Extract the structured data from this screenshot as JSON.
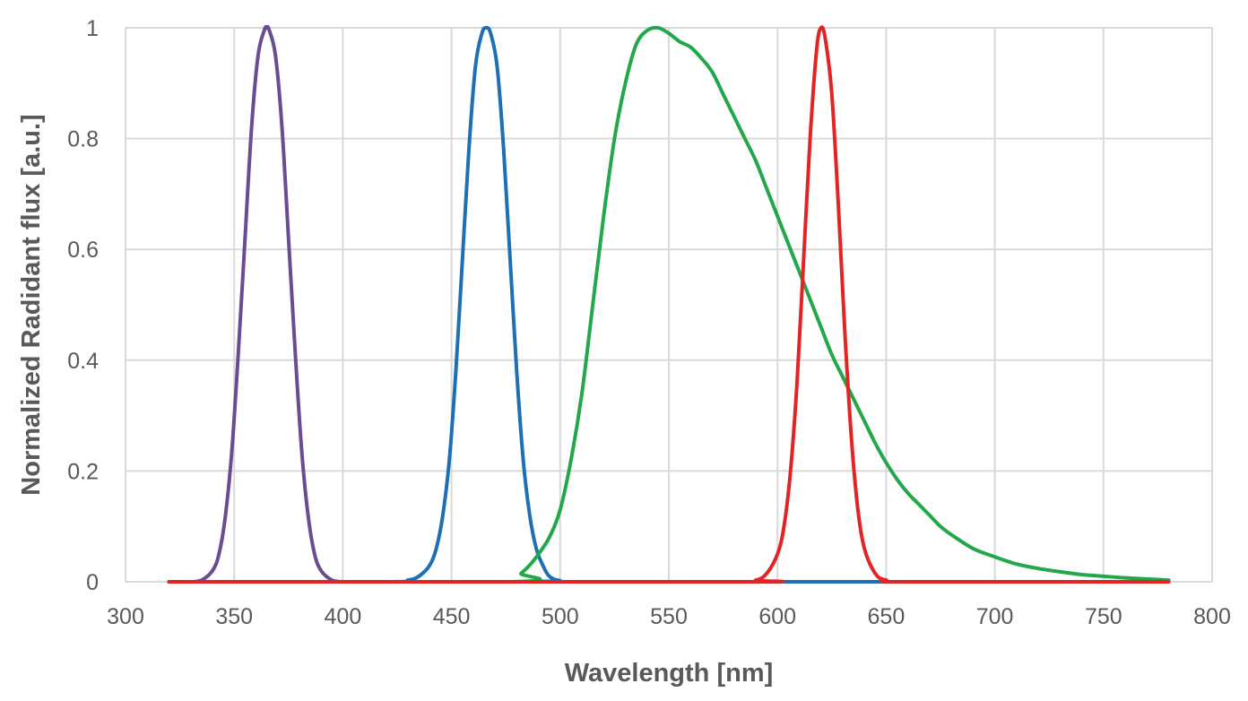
{
  "chart_data": {
    "type": "line",
    "title": "",
    "xlabel": "Wavelength  [nm]",
    "ylabel": "Normalized Radidant  flux [a.u.]",
    "xlim": [
      300,
      800
    ],
    "ylim": [
      0,
      1
    ],
    "x_ticks": [
      300,
      350,
      400,
      450,
      500,
      550,
      600,
      650,
      700,
      750,
      800
    ],
    "y_ticks": [
      0,
      0.2,
      0.4,
      0.6,
      0.8,
      1
    ],
    "y_tick_labels": [
      "0",
      "0.2",
      "0.4",
      "0.6",
      "0.8",
      "1"
    ],
    "x_tick_labels": [
      "300",
      "350",
      "400",
      "450",
      "500",
      "550",
      "600",
      "650",
      "700",
      "750",
      "800"
    ],
    "grid": true,
    "legend": "none",
    "series": [
      {
        "color": "#6a4c93",
        "x": [
          320,
          330,
          335,
          340,
          343,
          346,
          349,
          352,
          355,
          358,
          361,
          364,
          365,
          366,
          369,
          372,
          375,
          378,
          381,
          384,
          387,
          390,
          395,
          400,
          410,
          500,
          650
        ],
        "y": [
          0,
          0,
          0.003,
          0.02,
          0.05,
          0.12,
          0.24,
          0.42,
          0.62,
          0.82,
          0.95,
          0.997,
          1.0,
          0.997,
          0.95,
          0.82,
          0.62,
          0.42,
          0.24,
          0.12,
          0.05,
          0.02,
          0.003,
          0,
          0,
          0,
          0
        ]
      },
      {
        "color": "#1f6fb5",
        "x": [
          320,
          420,
          430,
          435,
          440,
          443,
          446,
          449,
          452,
          455,
          458,
          461,
          464,
          466,
          468,
          471,
          474,
          477,
          480,
          483,
          486,
          489,
          492,
          495,
          500,
          510,
          780
        ],
        "y": [
          0,
          0,
          0.003,
          0.01,
          0.03,
          0.06,
          0.12,
          0.22,
          0.38,
          0.58,
          0.78,
          0.93,
          0.99,
          1.0,
          0.99,
          0.93,
          0.78,
          0.58,
          0.38,
          0.22,
          0.12,
          0.06,
          0.03,
          0.01,
          0.002,
          0,
          0
        ]
      },
      {
        "color": "#22a84a",
        "x": [
          320,
          478,
          482,
          486,
          490,
          495,
          500,
          505,
          510,
          515,
          520,
          525,
          530,
          535,
          540,
          545,
          550,
          555,
          560,
          565,
          570,
          575,
          580,
          585,
          590,
          595,
          600,
          605,
          610,
          615,
          620,
          625,
          630,
          635,
          640,
          645,
          650,
          655,
          660,
          665,
          670,
          675,
          680,
          690,
          700,
          710,
          720,
          730,
          740,
          750,
          760,
          770,
          780
        ],
        "y": [
          0,
          0,
          0.015,
          0.03,
          0.05,
          0.08,
          0.13,
          0.22,
          0.34,
          0.5,
          0.66,
          0.8,
          0.9,
          0.97,
          0.995,
          1.0,
          0.99,
          0.975,
          0.965,
          0.945,
          0.92,
          0.88,
          0.84,
          0.8,
          0.76,
          0.71,
          0.66,
          0.61,
          0.56,
          0.51,
          0.46,
          0.41,
          0.37,
          0.33,
          0.29,
          0.25,
          0.215,
          0.185,
          0.16,
          0.14,
          0.12,
          0.1,
          0.085,
          0.06,
          0.045,
          0.032,
          0.024,
          0.018,
          0.013,
          0.01,
          0.007,
          0.005,
          0.003
        ]
      },
      {
        "color": "#e32424",
        "x": [
          320,
          580,
          590,
          595,
          600,
          603,
          606,
          609,
          612,
          615,
          618,
          620,
          622,
          625,
          628,
          631,
          634,
          637,
          640,
          645,
          650,
          660,
          780
        ],
        "y": [
          0,
          0,
          0.003,
          0.015,
          0.05,
          0.1,
          0.2,
          0.36,
          0.58,
          0.8,
          0.96,
          1.0,
          0.98,
          0.88,
          0.68,
          0.45,
          0.26,
          0.13,
          0.06,
          0.015,
          0.003,
          0,
          0
        ]
      }
    ]
  }
}
